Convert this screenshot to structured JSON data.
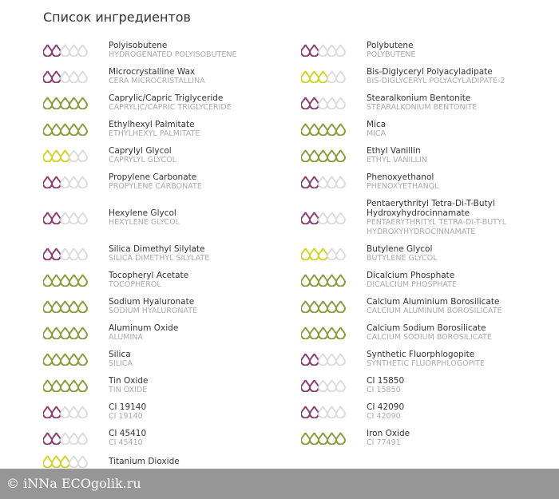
{
  "title": "Список ингредиентов",
  "rating_max": 5,
  "rating_colors": {
    "2": "#8b3d72",
    "3": "#d2d32a",
    "5": "#8a9c3e"
  },
  "empty_color": "#dcdcdc",
  "columns": [
    [
      {
        "name": "Polyisobutene",
        "inci": "HYDROGENATED POLYISOBUTENE",
        "rating": 2
      },
      {
        "name": "Microcrystalline Wax",
        "inci": "CERA MICROCRISTALLINA",
        "rating": 2
      },
      {
        "name": "Caprylic/Capric Triglyceride",
        "inci": "CAPRYLIC/CAPRIC TRIGLYCERIDE",
        "rating": 5
      },
      {
        "name": "Ethylhexyl Palmitate",
        "inci": "ETHYLHEXYL PALMITATE",
        "rating": 5
      },
      {
        "name": "Caprylyl Glycol",
        "inci": "CAPRYLYL GLYCOL",
        "rating": 3
      },
      {
        "name": "Propylene Carbonate",
        "inci": "PROPYLENE CARBONATE",
        "rating": 2
      },
      {
        "name": "Hexylene Glycol",
        "inci": "HEXYLENE GLYCOL",
        "rating": 2
      },
      {
        "name": "Silica Dimethyl Silylate",
        "inci": "SILICA DIMETHYL SILYLATE",
        "rating": 2
      },
      {
        "name": "Tocopheryl Acetate",
        "inci": "TOCOPHEROL",
        "rating": 5
      },
      {
        "name": "Sodium Hyaluronate",
        "inci": "SODIUM HYALURONATE",
        "rating": 5
      },
      {
        "name": "Aluminum Oxide",
        "inci": "ALUMINA",
        "rating": 5
      },
      {
        "name": "Silica",
        "inci": "SILICA",
        "rating": 5
      },
      {
        "name": "Tin Oxide",
        "inci": "TIN OXIDE",
        "rating": 5
      },
      {
        "name": "CI 19140",
        "inci": "CI 19140",
        "rating": 2
      },
      {
        "name": "CI 45410",
        "inci": "CI 45410",
        "rating": 2
      },
      {
        "name": "Titanium Dioxide",
        "rating": 3
      }
    ],
    [
      {
        "name": "Polybutene",
        "inci": "POLYBUTENE",
        "rating": 2
      },
      {
        "name": "Bis-Diglyceryl Polyacyladipate",
        "inci": "BIS-DIGLYCERYL POLYACYLADIPATE-2",
        "rating": 3
      },
      {
        "name": "Stearalkonium Bentonite",
        "inci": "STEARALKONIUM BENTONITE",
        "rating": 2
      },
      {
        "name": "Mica",
        "inci": "MICA",
        "rating": 5
      },
      {
        "name": "Ethyl Vanillin",
        "inci": "ETHYL VANILLIN",
        "rating": 5
      },
      {
        "name": "Phenoxyethanol",
        "inci": "PHENOXYETHANOL",
        "rating": 2
      },
      {
        "name": "Pentaerythrityl Tetra-Di-T-Butyl Hydroxyhydrocinnamate",
        "inci": "PENTAERYTHRITYL TETRA-DI-T-BUTYL HYDROXYHYDROCINNAMATE",
        "rating": 2
      },
      {
        "name": "Butylene Glycol",
        "inci": "BUTYLENE GLYCOL",
        "rating": 3
      },
      {
        "name": "Dicalcium Phosphate",
        "inci": "DICALCIUM PHOSPHATE",
        "rating": 5
      },
      {
        "name": "Calcium Aluminium Borosilicate",
        "inci": "CALCIUM ALUMINUM BOROSILICATE",
        "rating": 5
      },
      {
        "name": "Calcium Sodium Borosilicate",
        "inci": "CALCIUM SODIUM BOROSILICATE",
        "rating": 5
      },
      {
        "name": "Synthetic Fluorphlogopite",
        "inci": "SYNTHETIC FLUORPHLOGOPITE",
        "rating": 2
      },
      {
        "name": "CI 15850",
        "inci": "CI 15850",
        "rating": 2
      },
      {
        "name": "CI 42090",
        "inci": "CI 42090",
        "rating": 2
      },
      {
        "name": "Iron Oxide",
        "inci": "CI 77491",
        "rating": 5
      }
    ]
  ],
  "watermark": "© iNNa ECOgolik.ru"
}
